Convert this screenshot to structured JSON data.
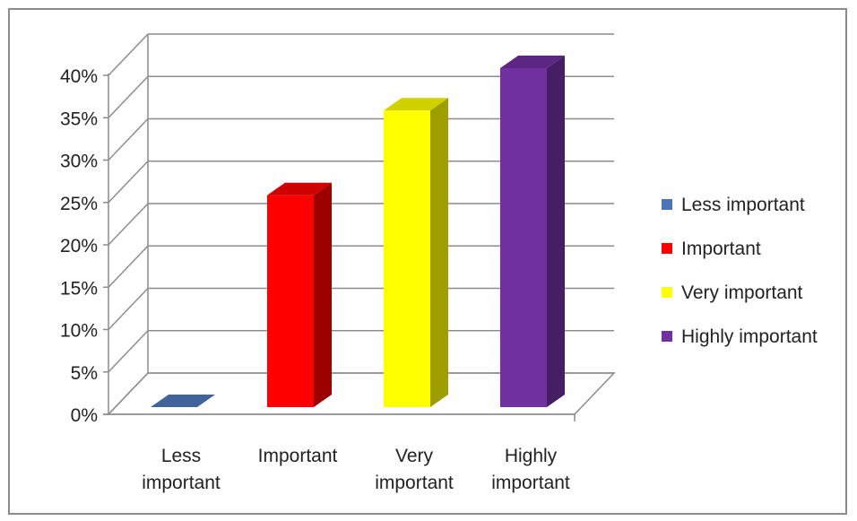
{
  "chart_data": {
    "type": "bar",
    "style": "3d-column",
    "categories": [
      "Less important",
      "Important",
      "Very important",
      "Highly important"
    ],
    "category_labels": [
      [
        "Less",
        "important"
      ],
      [
        "Important"
      ],
      [
        "Very",
        "important"
      ],
      [
        "Highly",
        "important"
      ]
    ],
    "values": [
      0,
      25,
      35,
      40
    ],
    "colors": [
      "#4a76b8",
      "#ff0000",
      "#ffff00",
      "#7030a0"
    ],
    "ylim": [
      0,
      40
    ],
    "ytick_values": [
      0,
      5,
      10,
      15,
      20,
      25,
      30,
      35,
      40
    ],
    "ytick_labels": [
      "0%",
      "5%",
      "10%",
      "15%",
      "20%",
      "25%",
      "30%",
      "35%",
      "40%"
    ],
    "title": "",
    "xlabel": "",
    "ylabel": "",
    "grid": true,
    "legend": {
      "position": "right",
      "entries": [
        "Less important",
        "Important",
        "Very important",
        "Highly important"
      ]
    }
  }
}
